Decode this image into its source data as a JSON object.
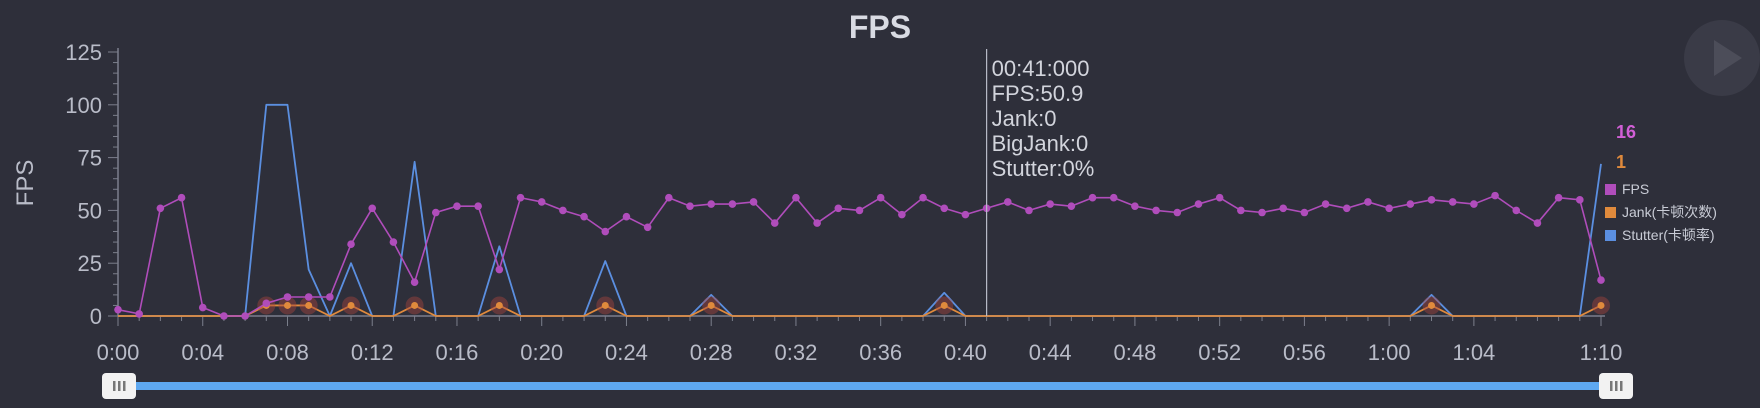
{
  "chart_data": {
    "type": "line",
    "title": "FPS",
    "ylabel": "FPS",
    "xlabel": "",
    "ylim": [
      0,
      125
    ],
    "xlim": [
      0,
      70
    ],
    "y_ticks": [
      0,
      25,
      50,
      75,
      100,
      125
    ],
    "x_tick_labels": [
      "0:00",
      "0:04",
      "0:08",
      "0:12",
      "0:16",
      "0:20",
      "0:24",
      "0:28",
      "0:32",
      "0:36",
      "0:40",
      "0:44",
      "0:48",
      "0:52",
      "0:56",
      "1:00",
      "1:04",
      "1:10"
    ],
    "x_tick_values": [
      0,
      4,
      8,
      12,
      16,
      20,
      24,
      28,
      32,
      36,
      40,
      44,
      48,
      52,
      56,
      60,
      64,
      70
    ],
    "series": [
      {
        "name": "FPS",
        "color": "#b04dbb",
        "x": [
          0,
          1,
          2,
          3,
          4,
          5,
          6,
          7,
          8,
          9,
          10,
          11,
          12,
          13,
          14,
          15,
          16,
          17,
          18,
          19,
          20,
          21,
          22,
          23,
          24,
          25,
          26,
          27,
          28,
          29,
          30,
          31,
          32,
          33,
          34,
          35,
          36,
          37,
          38,
          39,
          40,
          41,
          42,
          43,
          44,
          45,
          46,
          47,
          48,
          49,
          50,
          51,
          52,
          53,
          54,
          55,
          56,
          57,
          58,
          59,
          60,
          61,
          62,
          63,
          64,
          65,
          66,
          67,
          68,
          69,
          70
        ],
        "values": [
          3,
          1,
          51,
          56,
          4,
          0,
          0,
          6,
          9,
          9,
          9,
          34,
          51,
          35,
          16,
          49,
          52,
          52,
          22,
          56,
          54,
          50,
          47,
          40,
          47,
          42,
          56,
          52,
          53,
          53,
          54,
          44,
          56,
          44,
          51,
          50,
          56,
          48,
          56,
          51,
          48,
          51,
          54,
          50,
          53,
          52,
          56,
          56,
          52,
          50,
          49,
          53,
          56,
          50,
          49,
          51,
          49,
          53,
          51,
          54,
          51,
          53,
          55,
          54,
          53,
          57,
          50,
          44,
          56,
          55,
          17
        ]
      },
      {
        "name": "Jank(卡顿次数)",
        "color": "#e08a3c",
        "x": [
          0,
          6,
          7,
          8,
          9,
          10,
          11,
          12,
          13,
          14,
          15,
          16,
          17,
          18,
          19,
          20,
          21,
          22,
          23,
          24,
          25,
          26,
          27,
          28,
          29,
          30,
          36,
          37,
          38,
          39,
          40,
          41,
          60,
          61,
          62,
          63,
          64,
          69,
          70
        ],
        "values": [
          0,
          0,
          5,
          5,
          5,
          0,
          5,
          0,
          0,
          5,
          0,
          0,
          0,
          5,
          0,
          0,
          0,
          0,
          5,
          0,
          0,
          0,
          0,
          5,
          0,
          0,
          0,
          0,
          0,
          5,
          0,
          0,
          0,
          0,
          5,
          0,
          0,
          0,
          5
        ]
      },
      {
        "name": "Stutter(卡顿率)",
        "color": "#5b8fe0",
        "x": [
          0,
          6,
          7,
          8,
          9,
          10,
          11,
          12,
          13,
          14,
          15,
          16,
          17,
          18,
          19,
          20,
          21,
          22,
          23,
          24,
          25,
          26,
          27,
          28,
          29,
          30,
          36,
          37,
          38,
          39,
          40,
          41,
          60,
          61,
          62,
          63,
          64,
          69,
          70
        ],
        "values": [
          0,
          0,
          100,
          100,
          22,
          0,
          25,
          0,
          0,
          73,
          0,
          0,
          0,
          33,
          0,
          0,
          0,
          0,
          26,
          0,
          0,
          0,
          0,
          10,
          0,
          0,
          0,
          0,
          0,
          11,
          0,
          0,
          0,
          0,
          10,
          0,
          0,
          0,
          72
        ]
      }
    ],
    "cursor": {
      "x": 41,
      "lines": [
        "00:41:000",
        "FPS:50.9",
        "Jank:0",
        "BigJank:0",
        "Stutter:0%"
      ]
    },
    "badges": [
      {
        "text": "16",
        "color": "#d15fd6"
      },
      {
        "text": "1",
        "color": "#e08a3c"
      }
    ],
    "legend_position": "right",
    "grid": false
  }
}
